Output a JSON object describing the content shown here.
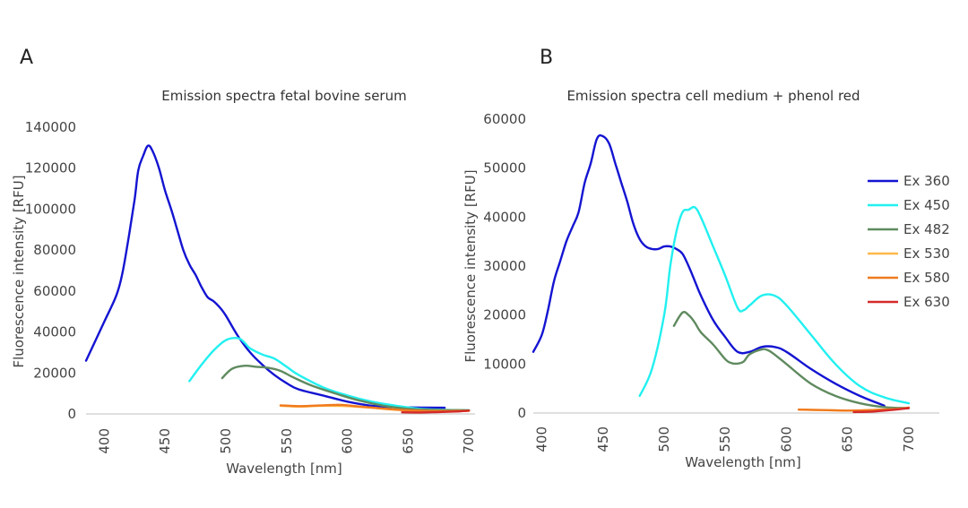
{
  "chart_data": [
    {
      "type": "line",
      "panel_label": "A",
      "title": "Emission spectra fetal bovine serum",
      "xlabel": "Wavelength [nm]",
      "ylabel": "Fluorescence intensity [RFU]",
      "xlim": [
        385,
        705
      ],
      "ylim": [
        0,
        140000
      ],
      "xticks": [
        400,
        450,
        500,
        550,
        600,
        650,
        700
      ],
      "yticks": [
        0,
        20000,
        40000,
        60000,
        80000,
        100000,
        120000,
        140000
      ],
      "series": [
        {
          "name": "Ex 360",
          "color": "#1414d2",
          "x": [
            385,
            400,
            410,
            415,
            420,
            425,
            428,
            432,
            436,
            440,
            445,
            450,
            455,
            460,
            465,
            470,
            475,
            480,
            485,
            490,
            495,
            500,
            510,
            520,
            530,
            540,
            550,
            560,
            580,
            600,
            620,
            640,
            660,
            680
          ],
          "y": [
            26000,
            45000,
            58000,
            69000,
            86000,
            105000,
            119000,
            126000,
            131000,
            128000,
            120000,
            109000,
            100000,
            90000,
            80000,
            73000,
            68000,
            62000,
            57000,
            55000,
            52000,
            48000,
            38000,
            30000,
            24000,
            19000,
            15000,
            12000,
            9000,
            6000,
            4000,
            3300,
            3100,
            3000
          ]
        },
        {
          "name": "Ex 450",
          "color": "#22f0f0",
          "x": [
            470,
            480,
            490,
            500,
            510,
            515,
            520,
            530,
            540,
            550,
            560,
            580,
            600,
            620,
            640,
            660,
            680,
            700
          ],
          "y": [
            16000,
            24000,
            31000,
            36000,
            37000,
            35000,
            32000,
            29000,
            27000,
            23000,
            19000,
            13000,
            9000,
            6000,
            4000,
            2500,
            2000,
            1800
          ]
        },
        {
          "name": "Ex 482",
          "color": "#5f8a5f",
          "x": [
            497,
            505,
            515,
            525,
            535,
            545,
            555,
            570,
            590,
            610,
            630,
            650,
            670,
            700
          ],
          "y": [
            17500,
            22000,
            23500,
            23000,
            22500,
            21000,
            18000,
            14000,
            10000,
            6500,
            4000,
            2500,
            2000,
            1800
          ]
        },
        {
          "name": "Ex 530",
          "color": "#ffb84a",
          "x": [
            545,
            560,
            580,
            600,
            620,
            640,
            660,
            680,
            700
          ],
          "y": [
            4000,
            3600,
            4000,
            3800,
            3000,
            2000,
            1500,
            1300,
            1500
          ]
        },
        {
          "name": "Ex 580",
          "color": "#f07a1e",
          "x": [
            545,
            560,
            580,
            595,
            610,
            630,
            650,
            670,
            690,
            700
          ],
          "y": [
            4200,
            3800,
            4200,
            4400,
            3600,
            2600,
            1800,
            1400,
            1500,
            1600
          ]
        },
        {
          "name": "Ex 630",
          "color": "#d42a2a",
          "x": [
            645,
            660,
            675,
            690,
            700
          ],
          "y": [
            800,
            700,
            900,
            1200,
            1600
          ]
        }
      ]
    },
    {
      "type": "line",
      "panel_label": "B",
      "title": "Emission spectra cell medium + phenol red",
      "xlabel": "Wavelength [nm]",
      "ylabel": "Fluorescence intensity [RFU]",
      "xlim": [
        393,
        725
      ],
      "ylim": [
        0,
        60000
      ],
      "xticks": [
        400,
        450,
        500,
        550,
        600,
        650,
        700
      ],
      "yticks": [
        0,
        10000,
        20000,
        30000,
        40000,
        50000,
        60000
      ],
      "series": [
        {
          "name": "Ex 360",
          "color": "#1414d2",
          "x": [
            393,
            400,
            405,
            410,
            415,
            420,
            425,
            430,
            435,
            440,
            445,
            450,
            455,
            460,
            465,
            470,
            475,
            480,
            485,
            490,
            495,
            500,
            505,
            510,
            515,
            520,
            525,
            530,
            540,
            550,
            560,
            570,
            580,
            590,
            600,
            620,
            640,
            660,
            680
          ],
          "y": [
            12500,
            16000,
            21000,
            27000,
            31000,
            35000,
            38000,
            41000,
            47000,
            51000,
            56000,
            56500,
            55000,
            51000,
            47000,
            43000,
            38500,
            35500,
            34000,
            33500,
            33500,
            34000,
            34000,
            33500,
            32500,
            30000,
            27000,
            24000,
            19000,
            15500,
            12500,
            12500,
            13500,
            13500,
            12500,
            9000,
            6000,
            3500,
            1500
          ]
        },
        {
          "name": "Ex 450",
          "color": "#22f0f0",
          "x": [
            480,
            490,
            500,
            505,
            510,
            515,
            520,
            525,
            530,
            540,
            550,
            560,
            565,
            570,
            580,
            590,
            600,
            620,
            640,
            660,
            680,
            700
          ],
          "y": [
            3500,
            9000,
            20000,
            30000,
            37000,
            41000,
            41500,
            42000,
            40000,
            34000,
            28000,
            21500,
            21000,
            22000,
            24000,
            24000,
            22000,
            16000,
            10000,
            5500,
            3200,
            2000
          ]
        },
        {
          "name": "Ex 482",
          "color": "#5f8a5f",
          "x": [
            508,
            515,
            520,
            525,
            530,
            540,
            550,
            555,
            560,
            565,
            570,
            580,
            585,
            590,
            600,
            620,
            640,
            660,
            680,
            700
          ],
          "y": [
            17800,
            20500,
            20000,
            18500,
            16500,
            14000,
            11000,
            10200,
            10100,
            10500,
            12000,
            13000,
            12800,
            12000,
            10000,
            6000,
            3500,
            2000,
            1200,
            1000
          ]
        },
        {
          "name": "Ex 530",
          "color": "#ffb84a",
          "x": [
            610,
            630,
            650,
            670,
            690,
            700
          ],
          "y": [
            700,
            600,
            500,
            600,
            800,
            1100
          ]
        },
        {
          "name": "Ex 580",
          "color": "#f07a1e",
          "x": [
            610,
            630,
            650,
            670,
            690,
            700
          ],
          "y": [
            700,
            600,
            500,
            600,
            800,
            1100
          ]
        },
        {
          "name": "Ex 630",
          "color": "#d42a2a",
          "x": [
            655,
            670,
            685,
            700
          ],
          "y": [
            200,
            300,
            600,
            1000
          ]
        }
      ]
    }
  ]
}
